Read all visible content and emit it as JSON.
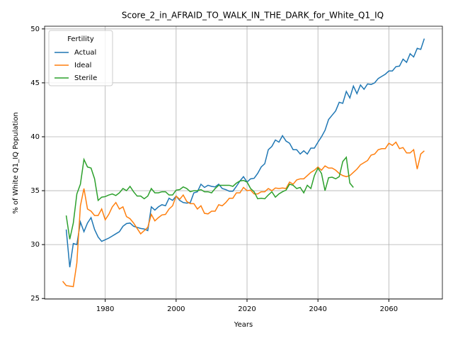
{
  "chart_data": {
    "type": "line",
    "title": "Score_2_in_AFRAID_TO_WALK_IN_THE_DARK_for_White_Q1_IQ",
    "x_label": "Years",
    "y_label": "% of White Q1_IQ Population",
    "legend_title": "Fertility",
    "legend_position": "upper left",
    "grid": true,
    "xlim": [
      1962.9,
      2075.1
    ],
    "xticks": [
      1980,
      2000,
      2020,
      2040,
      2060
    ],
    "ylim": [
      24.95,
      50.25
    ],
    "yticks": [
      25,
      30,
      35,
      40,
      45,
      50
    ],
    "x": [
      1968,
      1969,
      1970,
      1971,
      1972,
      1973,
      1974,
      1975,
      1976,
      1977,
      1978,
      1979,
      1980,
      1981,
      1982,
      1983,
      1984,
      1985,
      1986,
      1987,
      1988,
      1989,
      1990,
      1991,
      1992,
      1993,
      1994,
      1995,
      1996,
      1997,
      1998,
      1999,
      2000,
      2001,
      2002,
      2003,
      2004,
      2005,
      2006,
      2007,
      2008,
      2009,
      2010,
      2011,
      2012,
      2013,
      2014,
      2015,
      2016,
      2017,
      2018,
      2019,
      2020,
      2021,
      2022,
      2023,
      2024,
      2025,
      2026,
      2027,
      2028,
      2029,
      2030,
      2031,
      2032,
      2033,
      2034,
      2035,
      2036,
      2037,
      2038,
      2039,
      2040,
      2041,
      2042,
      2043,
      2044,
      2045,
      2046,
      2047,
      2048,
      2049,
      2050,
      2051,
      2052,
      2053,
      2054,
      2055,
      2056,
      2057,
      2058,
      2059,
      2060,
      2061,
      2062,
      2063,
      2064,
      2065,
      2066,
      2067,
      2068,
      2069,
      2070
    ],
    "series": [
      {
        "name": "Actual",
        "color": "#1f77b4",
        "values": [
          null,
          31.4,
          27.9,
          30.1,
          30.0,
          32.1,
          31.2,
          32.0,
          32.5,
          31.4,
          30.7,
          30.3,
          30.45,
          30.6,
          30.8,
          31.0,
          31.2,
          31.7,
          31.95,
          32.0,
          31.7,
          31.6,
          31.5,
          31.45,
          31.3,
          33.5,
          33.2,
          33.5,
          33.7,
          33.6,
          34.3,
          34.1,
          34.5,
          34.1,
          33.9,
          33.85,
          33.9,
          34.8,
          34.9,
          35.6,
          35.3,
          35.5,
          35.4,
          35.35,
          35.6,
          35.2,
          35.1,
          34.95,
          34.95,
          35.4,
          35.9,
          36.3,
          35.8,
          36.1,
          36.15,
          36.6,
          37.2,
          37.5,
          38.8,
          39.1,
          39.7,
          39.5,
          40.1,
          39.6,
          39.4,
          38.8,
          38.8,
          38.4,
          38.7,
          38.4,
          38.95,
          38.95,
          39.5,
          40.0,
          40.6,
          41.6,
          42.0,
          42.4,
          43.2,
          43.1,
          44.2,
          43.6,
          44.7,
          44.0,
          44.8,
          44.4,
          44.9,
          44.85,
          45.0,
          45.4,
          45.6,
          45.8,
          46.1,
          46.1,
          46.5,
          46.55,
          47.2,
          46.9,
          47.7,
          47.4,
          48.2,
          48.1,
          49.1
        ]
      },
      {
        "name": "Ideal",
        "color": "#ff7f0e",
        "values": [
          26.6,
          26.2,
          26.15,
          26.1,
          28.3,
          33.6,
          35.2,
          33.3,
          33.1,
          32.7,
          32.7,
          33.3,
          32.3,
          32.8,
          33.5,
          33.9,
          33.3,
          33.5,
          32.6,
          32.4,
          32.0,
          31.5,
          31.0,
          31.3,
          31.6,
          32.8,
          32.2,
          32.5,
          32.75,
          32.8,
          33.3,
          33.6,
          34.5,
          34.2,
          34.6,
          34.0,
          33.8,
          33.8,
          33.3,
          33.6,
          32.9,
          32.85,
          33.1,
          33.1,
          33.7,
          33.6,
          33.9,
          34.3,
          34.3,
          34.8,
          34.8,
          35.3,
          35.0,
          35.05,
          34.7,
          34.7,
          34.9,
          34.9,
          35.2,
          35.0,
          35.25,
          35.2,
          35.25,
          35.2,
          35.8,
          35.6,
          36.0,
          36.1,
          36.1,
          36.4,
          36.7,
          36.9,
          37.2,
          36.9,
          37.3,
          37.1,
          37.1,
          36.9,
          36.6,
          36.4,
          36.3,
          36.4,
          36.7,
          37.0,
          37.4,
          37.6,
          37.8,
          38.3,
          38.4,
          38.8,
          38.9,
          38.9,
          39.4,
          39.2,
          39.5,
          38.9,
          39.0,
          38.5,
          38.5,
          38.8,
          37.0,
          38.4,
          38.7
        ]
      },
      {
        "name": "Sterile",
        "color": "#2ca02c",
        "values": [
          null,
          32.7,
          30.5,
          32.0,
          34.7,
          35.6,
          37.9,
          37.2,
          37.1,
          36.1,
          34.1,
          34.4,
          34.45,
          34.6,
          34.7,
          34.55,
          34.8,
          35.2,
          35.0,
          35.4,
          34.9,
          34.5,
          34.5,
          34.25,
          34.5,
          35.2,
          34.8,
          34.8,
          34.9,
          34.9,
          34.6,
          34.6,
          35.05,
          35.1,
          35.35,
          35.2,
          34.9,
          35.0,
          35.0,
          35.1,
          34.9,
          34.9,
          34.8,
          35.2,
          35.5,
          35.5,
          35.5,
          35.5,
          35.4,
          35.7,
          35.9,
          35.95,
          35.8,
          35.2,
          34.9,
          34.25,
          34.3,
          34.25,
          34.6,
          34.9,
          34.4,
          34.7,
          34.9,
          35.05,
          35.6,
          35.5,
          35.2,
          35.3,
          34.8,
          35.5,
          35.2,
          36.4,
          37.1,
          36.6,
          35.0,
          36.2,
          36.25,
          36.1,
          36.3,
          37.7,
          38.1,
          35.7,
          35.3,
          null,
          null,
          null,
          null,
          null,
          null,
          null,
          null,
          null,
          null,
          null,
          null,
          null,
          null,
          null,
          null,
          null,
          null,
          null,
          null
        ]
      }
    ]
  }
}
